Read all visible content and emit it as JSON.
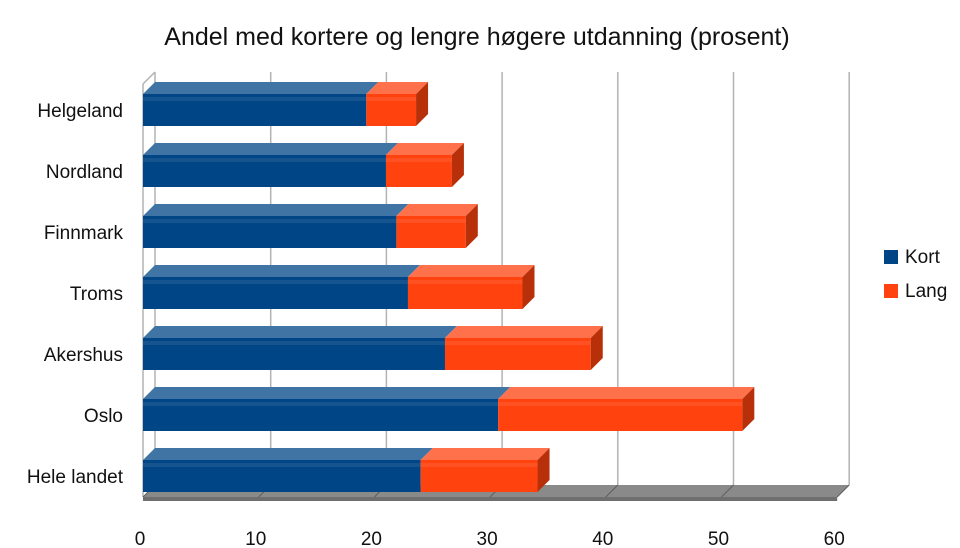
{
  "chart_data": {
    "type": "bar",
    "orientation": "horizontal",
    "stacked": true,
    "style": "3d",
    "title": "Andel med kortere og lengre høgere utdanning (prosent)",
    "categories": [
      "Helgeland",
      "Nordland",
      "Finnmark",
      "Troms",
      "Akershus",
      "Oslo",
      "Hele landet"
    ],
    "series": [
      {
        "name": "Kort",
        "color": "#004586",
        "values": [
          19.3,
          21.0,
          21.9,
          22.9,
          26.1,
          30.7,
          24.0
        ]
      },
      {
        "name": "Lang",
        "color": "#ff420e",
        "values": [
          4.3,
          5.7,
          6.0,
          9.9,
          12.6,
          21.1,
          10.1
        ]
      }
    ],
    "xlim": [
      0,
      60
    ],
    "xticks": [
      0,
      10,
      20,
      30,
      40,
      50,
      60
    ],
    "grid": true,
    "legend_position": "right",
    "xlabel": "",
    "ylabel": ""
  }
}
